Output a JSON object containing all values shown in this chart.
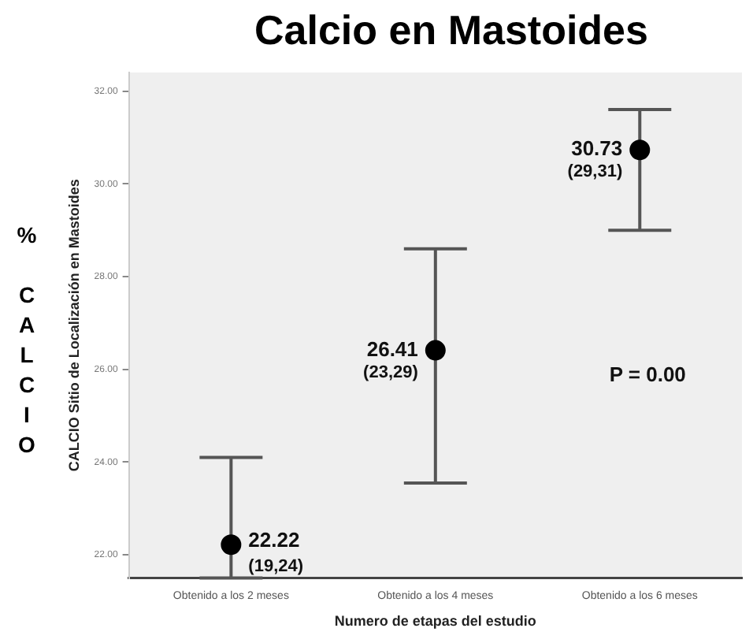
{
  "chart_data": {
    "type": "scatter",
    "title": "Calcio  en Mastoides",
    "xlabel": "Numero de etapas del estudio",
    "ylabel": "CALCIO Sitio de Localización en Mastoides",
    "categories": [
      "Obtenido a los 2 meses",
      "Obtenido a los 4 meses",
      "Obtenido a los 6 meses"
    ],
    "values": [
      22.22,
      26.41,
      30.73
    ],
    "color": "#000000",
    "marker": "circle",
    "data_labels": true,
    "errors": [
      [
        21.5,
        24.1
      ],
      [
        23.55,
        28.6
      ],
      [
        29.0,
        31.6
      ]
    ],
    "ylim": [
      21.5,
      32.4
    ],
    "yticks": [
      {
        "value": 22,
        "label": "22.00"
      },
      {
        "value": 24,
        "label": "24.00"
      },
      {
        "value": 26,
        "label": "26.00"
      },
      {
        "value": 28,
        "label": "28.00"
      },
      {
        "value": 30,
        "label": "30.00"
      },
      {
        "value": 32,
        "label": "32.00"
      }
    ],
    "grid": false,
    "annotations": [
      {
        "text": "(19,24)",
        "x": "Obtenido a los 2 meses",
        "y": 22.22
      },
      {
        "text": "(23,29)",
        "x": "Obtenido a los 4 meses",
        "y": 26.41
      },
      {
        "text": "(29,31)",
        "x": "Obtenido a los 6 meses",
        "y": 30.73
      },
      "P = 0.00",
      "% CALCIO"
    ]
  }
}
